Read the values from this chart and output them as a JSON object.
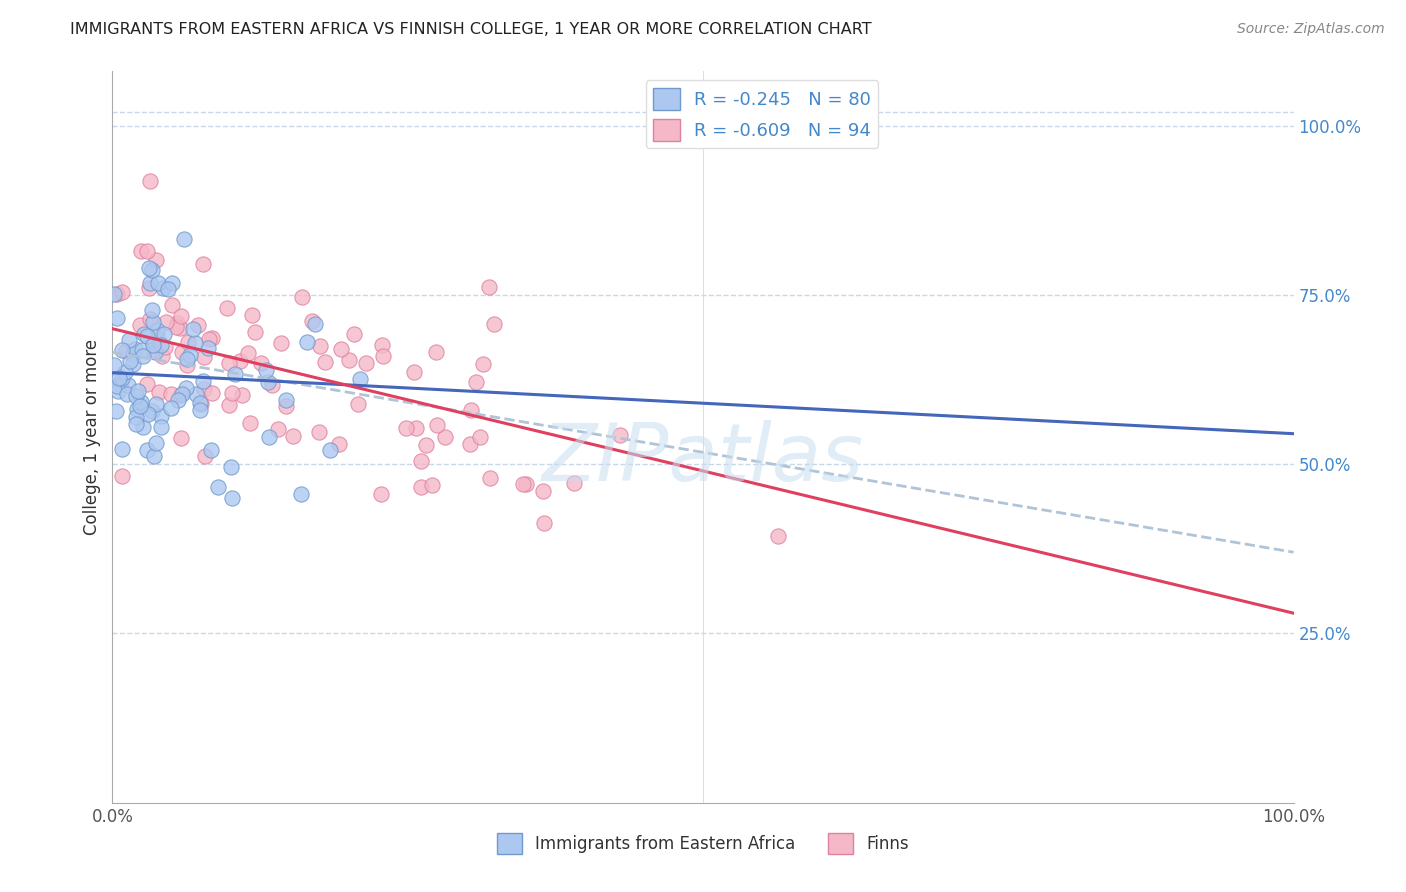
{
  "title": "IMMIGRANTS FROM EASTERN AFRICA VS FINNISH COLLEGE, 1 YEAR OR MORE CORRELATION CHART",
  "source": "Source: ZipAtlas.com",
  "ylabel": "College, 1 year or more",
  "xlim": [
    0.0,
    1.0
  ],
  "ylim": [
    0.0,
    1.08
  ],
  "x_ticks": [
    0.0,
    0.25,
    0.5,
    0.75,
    1.0
  ],
  "x_tick_labels": [
    "0.0%",
    "",
    "",
    "",
    "100.0%"
  ],
  "y_ticks": [
    0.25,
    0.5,
    0.75,
    1.0
  ],
  "y_tick_labels": [
    "25.0%",
    "50.0%",
    "75.0%",
    "100.0%"
  ],
  "blue_color": "#adc8f0",
  "pink_color": "#f5b8c8",
  "blue_edge": "#7099cc",
  "pink_edge": "#e080a0",
  "blue_line_color": "#4466bb",
  "pink_line_color": "#e04060",
  "gray_dashed_color": "#b0c4d8",
  "legend_blue_label": "R = -0.245   N = 80",
  "legend_pink_label": "R = -0.609   N = 94",
  "legend_bottom_blue": "Immigrants from Eastern Africa",
  "legend_bottom_pink": "Finns",
  "watermark": "ZIPatlas",
  "R_blue": -0.245,
  "N_blue": 80,
  "R_pink": -0.609,
  "N_pink": 94,
  "blue_intercept": 0.635,
  "blue_slope": -0.09,
  "pink_intercept": 0.7,
  "pink_slope": -0.42,
  "gray_intercept": 0.665,
  "gray_slope": -0.295,
  "seed_blue": 7,
  "seed_pink": 21
}
